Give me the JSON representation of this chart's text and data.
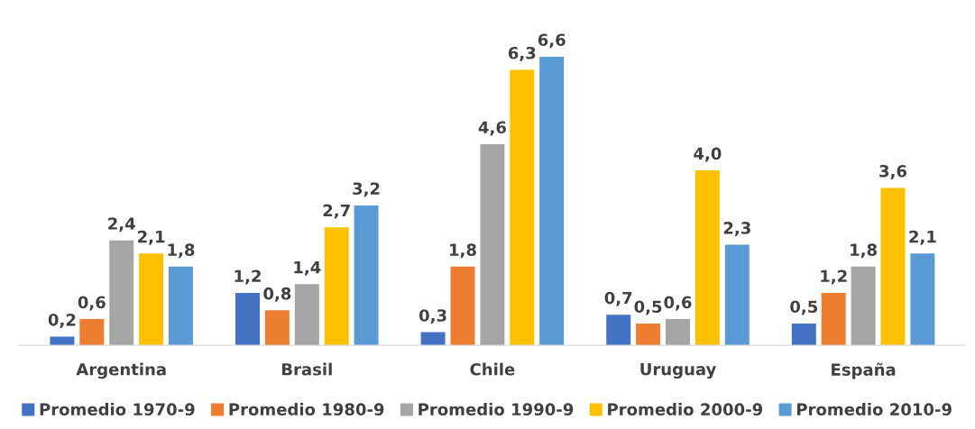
{
  "chart_data": {
    "type": "bar",
    "categories": [
      "Argentina",
      "Brasil",
      "Chile",
      "Uruguay",
      "España"
    ],
    "series": [
      {
        "name": "Promedio 1970-9",
        "color": "#4472c4",
        "values": [
          0.2,
          1.2,
          0.3,
          0.7,
          0.5
        ],
        "value_labels": [
          "0,2",
          "1,2",
          "0,3",
          "0,7",
          "0,5"
        ]
      },
      {
        "name": "Promedio 1980-9",
        "color": "#ed7d31",
        "values": [
          0.6,
          0.8,
          1.8,
          0.5,
          1.2
        ],
        "value_labels": [
          "0,6",
          "0,8",
          "1,8",
          "0,5",
          "1,2"
        ]
      },
      {
        "name": "Promedio 1990-9",
        "color": "#a5a5a5",
        "values": [
          2.4,
          1.4,
          4.6,
          0.6,
          1.8
        ],
        "value_labels": [
          "2,4",
          "1,4",
          "4,6",
          "0,6",
          "1,8"
        ]
      },
      {
        "name": "Promedio 2000-9",
        "color": "#ffc000",
        "values": [
          2.1,
          2.7,
          6.3,
          4.0,
          3.6
        ],
        "value_labels": [
          "2,1",
          "2,7",
          "6,3",
          "4,0",
          "3,6"
        ]
      },
      {
        "name": "Promedio 2010-9",
        "color": "#5b9bd5",
        "values": [
          1.8,
          3.2,
          6.6,
          2.3,
          2.1
        ],
        "value_labels": [
          "1,8",
          "3,2",
          "6,6",
          "2,3",
          "2,1"
        ]
      }
    ],
    "legend": "bottom"
  }
}
